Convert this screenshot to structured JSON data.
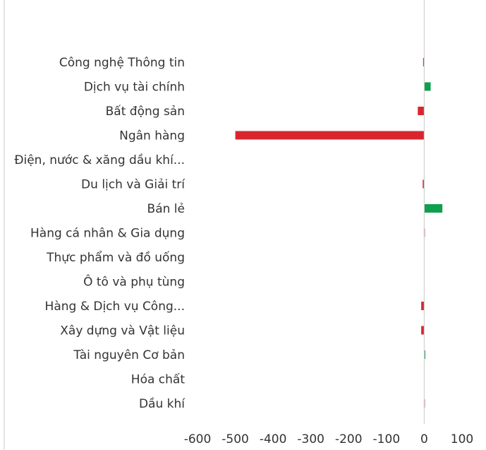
{
  "chart_data": {
    "type": "bar",
    "orientation": "horizontal",
    "categories": [
      "Công nghệ Thông tin",
      "Dịch vụ tài chính",
      "Bất động sản",
      "Ngân hàng",
      "Điện, nước & xăng dầu khí...",
      "Du lịch và Giải trí",
      "Bán lẻ",
      "Hàng cá nhân & Gia dụng",
      "Thực phẩm và đồ uống",
      "Ô tô và phụ tùng",
      "Hàng & Dịch vụ Công...",
      "Xây dựng và Vật liệu",
      "Tài nguyên Cơ bản",
      "Hóa chất",
      "Dầu khí"
    ],
    "values": [
      -3,
      17,
      -17,
      -500,
      0,
      -4,
      48,
      -1,
      0,
      0,
      -8,
      -8,
      1,
      0,
      -1
    ],
    "xlim": [
      -600,
      100
    ],
    "xticks": [
      -600,
      -500,
      -400,
      -300,
      -200,
      -100,
      0,
      100
    ],
    "tick_labels": [
      "-600",
      "-500",
      "-400",
      "-300",
      "-200",
      "-100",
      "0",
      "100"
    ],
    "positive_color": "#0e9f4f",
    "negative_color": "#d9262e",
    "grid": false,
    "title": "",
    "xlabel": "",
    "ylabel": ""
  }
}
